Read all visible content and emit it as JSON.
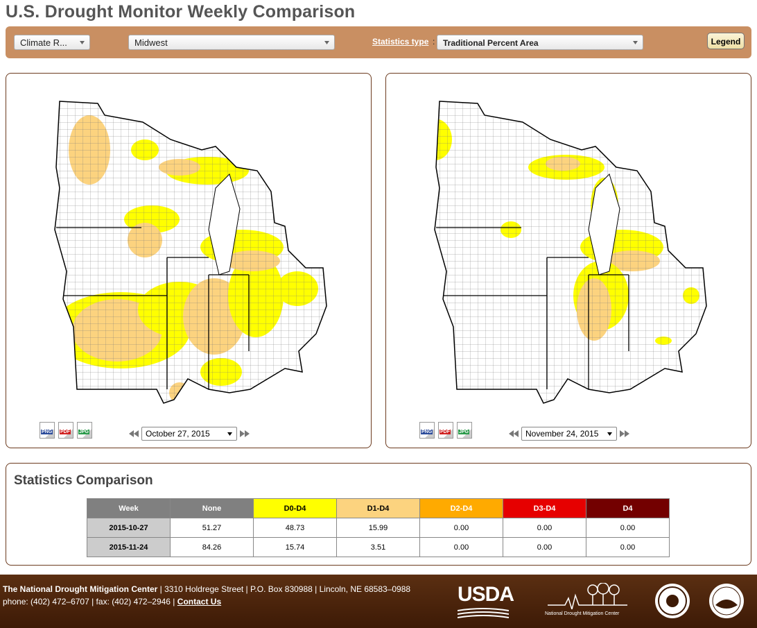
{
  "title": "U.S. Drought Monitor Weekly Comparison",
  "toolbar": {
    "region_type": "Climate R...",
    "region": "Midwest",
    "stats_label": "Statistics type",
    "stats_sep": ":",
    "stats_type": "Traditional Percent Area",
    "legend": "Legend"
  },
  "maps": [
    {
      "downloads": [
        "PNG",
        "PDF",
        "JPG"
      ],
      "date": "October 27, 2015"
    },
    {
      "downloads": [
        "PNG",
        "PDF",
        "JPG"
      ],
      "date": "November 24, 2015"
    }
  ],
  "statistics": {
    "heading": "Statistics Comparison",
    "columns": [
      "Week",
      "None",
      "D0-D4",
      "D1-D4",
      "D2-D4",
      "D3-D4",
      "D4"
    ],
    "rows": [
      [
        "2015-10-27",
        "51.27",
        "48.73",
        "15.99",
        "0.00",
        "0.00",
        "0.00"
      ],
      [
        "2015-11-24",
        "84.26",
        "15.74",
        "3.51",
        "0.00",
        "0.00",
        "0.00"
      ]
    ]
  },
  "footer": {
    "org": "The National Drought Mitigation Center",
    "address": "| 3310 Holdrege Street | P.O. Box 830988 | Lincoln, NE 68583–0988",
    "phone": "phone: (402) 472–6707 | fax: (402) 472–2946 |",
    "contact": "Contact Us",
    "usda": "USDA",
    "ndmc": "National Drought Mitigation Center"
  }
}
